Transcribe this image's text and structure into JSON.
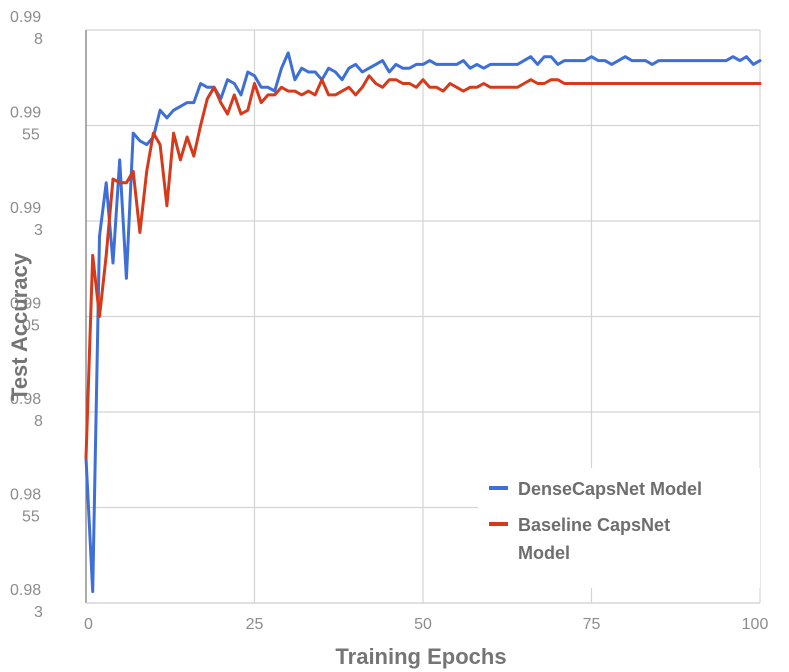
{
  "chart_data": {
    "type": "line",
    "xlabel": "Training Epochs",
    "ylabel": "Test Accuracy",
    "xlim": [
      0,
      100
    ],
    "ylim": [
      0.983,
      0.998
    ],
    "grid": true,
    "legend_position": "bottom-right",
    "x_ticks": [
      "0",
      "25",
      "50",
      "75",
      "100"
    ],
    "y_ticks": [
      {
        "value": 0.998,
        "lines": [
          "0.99",
          "8"
        ]
      },
      {
        "value": 0.9955,
        "lines": [
          "0.99",
          "55"
        ]
      },
      {
        "value": 0.993,
        "lines": [
          "0.99",
          "3"
        ]
      },
      {
        "value": 0.9905,
        "lines": [
          "0.99",
          "05"
        ]
      },
      {
        "value": 0.988,
        "lines": [
          "0.98",
          "8"
        ]
      },
      {
        "value": 0.9855,
        "lines": [
          "0.98",
          "55"
        ]
      },
      {
        "value": 0.983,
        "lines": [
          "0.98",
          "3"
        ]
      }
    ],
    "series": [
      {
        "name": "DenseCapsNet Model",
        "color": "#3d6fd6",
        "x": [
          0,
          1,
          2,
          3,
          4,
          5,
          6,
          7,
          8,
          9,
          10,
          11,
          12,
          13,
          14,
          15,
          16,
          17,
          18,
          19,
          20,
          21,
          22,
          23,
          24,
          25,
          26,
          27,
          28,
          29,
          30,
          31,
          32,
          33,
          34,
          35,
          36,
          37,
          38,
          39,
          40,
          41,
          42,
          43,
          44,
          45,
          46,
          47,
          48,
          49,
          50,
          51,
          52,
          53,
          54,
          55,
          56,
          57,
          58,
          59,
          60,
          61,
          62,
          63,
          64,
          65,
          66,
          67,
          68,
          69,
          70,
          71,
          72,
          73,
          74,
          75,
          76,
          77,
          78,
          79,
          80,
          81,
          82,
          83,
          84,
          85,
          86,
          87,
          88,
          89,
          90,
          91,
          92,
          93,
          94,
          95,
          96,
          97,
          98,
          99,
          100
        ],
        "y": [
          0.9868,
          0.9833,
          0.9926,
          0.994,
          0.9919,
          0.9946,
          0.9915,
          0.9953,
          0.9951,
          0.995,
          0.9952,
          0.9959,
          0.9957,
          0.9959,
          0.996,
          0.9961,
          0.9961,
          0.9966,
          0.9965,
          0.9965,
          0.9962,
          0.9967,
          0.9966,
          0.9963,
          0.9969,
          0.9968,
          0.9965,
          0.9965,
          0.9964,
          0.997,
          0.9974,
          0.9967,
          0.997,
          0.9969,
          0.9969,
          0.9967,
          0.997,
          0.9969,
          0.9967,
          0.997,
          0.9971,
          0.9969,
          0.997,
          0.9971,
          0.9972,
          0.9969,
          0.9971,
          0.997,
          0.997,
          0.9971,
          0.9971,
          0.9972,
          0.9971,
          0.9971,
          0.9971,
          0.9971,
          0.9972,
          0.997,
          0.9971,
          0.997,
          0.9971,
          0.9971,
          0.9971,
          0.9971,
          0.9971,
          0.9972,
          0.9973,
          0.9971,
          0.9973,
          0.9973,
          0.9971,
          0.9972,
          0.9972,
          0.9972,
          0.9972,
          0.9973,
          0.9972,
          0.9972,
          0.9971,
          0.9972,
          0.9973,
          0.9972,
          0.9972,
          0.9972,
          0.9971,
          0.9972,
          0.9972,
          0.9972,
          0.9972,
          0.9972,
          0.9972,
          0.9972,
          0.9972,
          0.9972,
          0.9972,
          0.9972,
          0.9973,
          0.9972,
          0.9973,
          0.9971,
          0.9972
        ]
      },
      {
        "name": "Baseline CapsNet Model",
        "color": "#d63a1a",
        "x": [
          0,
          1,
          2,
          3,
          4,
          5,
          6,
          7,
          8,
          9,
          10,
          11,
          12,
          13,
          14,
          15,
          16,
          17,
          18,
          19,
          20,
          21,
          22,
          23,
          24,
          25,
          26,
          27,
          28,
          29,
          30,
          31,
          32,
          33,
          34,
          35,
          36,
          37,
          38,
          39,
          40,
          41,
          42,
          43,
          44,
          45,
          46,
          47,
          48,
          49,
          50,
          51,
          52,
          53,
          54,
          55,
          56,
          57,
          58,
          59,
          60,
          61,
          62,
          63,
          64,
          65,
          66,
          67,
          68,
          69,
          70,
          71,
          72,
          73,
          74,
          75,
          76,
          77,
          78,
          79,
          80,
          81,
          82,
          83,
          84,
          85,
          86,
          87,
          88,
          89,
          90,
          91,
          92,
          93,
          94,
          95,
          96,
          97,
          98,
          99,
          100
        ],
        "y": [
          0.9868,
          0.9921,
          0.9905,
          0.9921,
          0.9941,
          0.994,
          0.994,
          0.9943,
          0.9927,
          0.9943,
          0.9953,
          0.995,
          0.9934,
          0.9953,
          0.9946,
          0.9952,
          0.9947,
          0.9955,
          0.9962,
          0.9965,
          0.9961,
          0.9958,
          0.9963,
          0.9958,
          0.9959,
          0.9966,
          0.9961,
          0.9963,
          0.9963,
          0.9965,
          0.9964,
          0.9964,
          0.9963,
          0.9964,
          0.9963,
          0.9967,
          0.9963,
          0.9963,
          0.9964,
          0.9965,
          0.9963,
          0.9965,
          0.9968,
          0.9966,
          0.9965,
          0.9967,
          0.9967,
          0.9966,
          0.9966,
          0.9965,
          0.9967,
          0.9965,
          0.9965,
          0.9964,
          0.9966,
          0.9965,
          0.9964,
          0.9965,
          0.9965,
          0.9966,
          0.9965,
          0.9965,
          0.9965,
          0.9965,
          0.9965,
          0.9966,
          0.9967,
          0.9966,
          0.9966,
          0.9967,
          0.9967,
          0.9966,
          0.9966,
          0.9966,
          0.9966,
          0.9966,
          0.9966,
          0.9966,
          0.9966,
          0.9966,
          0.9966,
          0.9966,
          0.9966,
          0.9966,
          0.9966,
          0.9966,
          0.9966,
          0.9966,
          0.9966,
          0.9966,
          0.9966,
          0.9966,
          0.9966,
          0.9966,
          0.9966,
          0.9966,
          0.9966,
          0.9966,
          0.9966,
          0.9966,
          0.9966
        ]
      }
    ]
  },
  "legend": {
    "items": [
      {
        "lines": [
          "DenseCapsNet Model"
        ],
        "color": "#3d6fd6"
      },
      {
        "lines": [
          "Baseline CapsNet",
          "Model"
        ],
        "color": "#d63a1a"
      }
    ]
  }
}
